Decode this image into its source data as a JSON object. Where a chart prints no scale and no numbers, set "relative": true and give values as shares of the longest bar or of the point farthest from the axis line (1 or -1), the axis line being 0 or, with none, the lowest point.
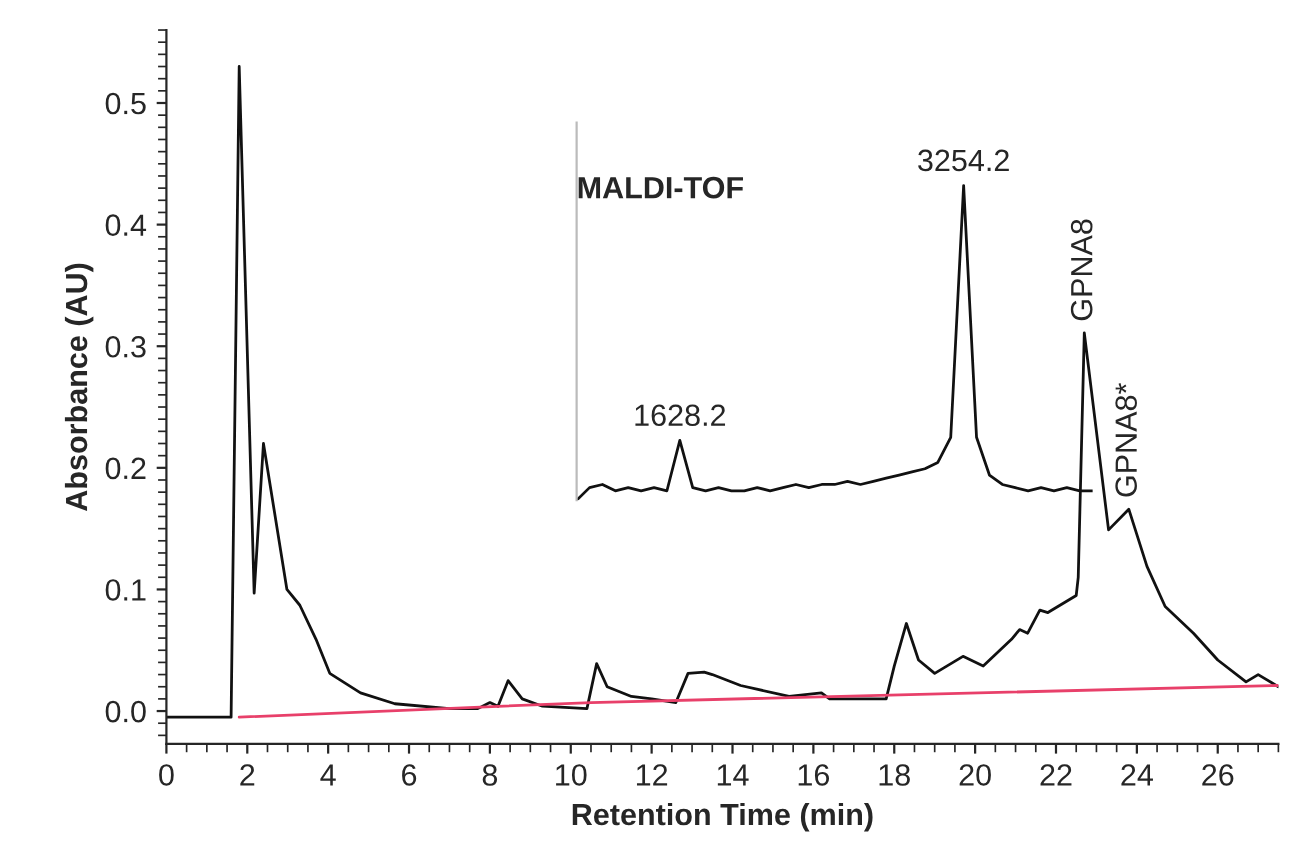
{
  "chart_data": [
    {
      "type": "line",
      "xlabel": "Retention Time (min)",
      "ylabel": "Absorbance (AU)",
      "xlim": [
        0,
        27.5
      ],
      "ylim": [
        -0.027,
        0.56
      ],
      "xticks": [
        0,
        2,
        4,
        6,
        8,
        10,
        12,
        14,
        16,
        18,
        20,
        22,
        24,
        26
      ],
      "yticks": [
        {
          "value": 0,
          "label": "0.0"
        },
        {
          "value": 0.1,
          "label": "0.1"
        },
        {
          "value": 0.2,
          "label": "0.2"
        },
        {
          "value": 0.3,
          "label": "0.3"
        },
        {
          "value": 0.4,
          "label": "0.4"
        },
        {
          "value": 0.5,
          "label": "0.5"
        }
      ],
      "grid": false,
      "legend": false,
      "marker": "none",
      "line_style": "solid",
      "series": [
        {
          "color": "#111111",
          "x": [
            0,
            1.6,
            1.8,
            2.17,
            2.4,
            2.98,
            3.3,
            3.7,
            4.04,
            4.8,
            5.65,
            7.0,
            7.7,
            8.0,
            8.2,
            8.45,
            8.8,
            9.3,
            10.4,
            10.64,
            10.9,
            11.5,
            12.0,
            12.6,
            12.9,
            13.3,
            13.5,
            14.2,
            15.4,
            16.2,
            16.4,
            17.8,
            18.0,
            18.3,
            18.6,
            19.0,
            19.7,
            20.2,
            20.9,
            21.1,
            21.3,
            21.6,
            21.8,
            22.5,
            22.55,
            22.7,
            23.3,
            23.8,
            24.25,
            24.7,
            25.4,
            26.0,
            26.7,
            27.0,
            27.5
          ],
          "values": [
            -0.005,
            -0.005,
            0.53,
            0.097,
            0.22,
            0.1,
            0.087,
            0.059,
            0.031,
            0.015,
            0.006,
            0.002,
            0.002,
            0.007,
            0.004,
            0.025,
            0.01,
            0.004,
            0.002,
            0.039,
            0.02,
            0.012,
            0.01,
            0.007,
            0.031,
            0.032,
            0.03,
            0.021,
            0.012,
            0.015,
            0.01,
            0.01,
            0.037,
            0.072,
            0.042,
            0.031,
            0.045,
            0.037,
            0.059,
            0.067,
            0.064,
            0.083,
            0.081,
            0.095,
            0.11,
            0.311,
            0.149,
            0.166,
            0.119,
            0.086,
            0.064,
            0.042,
            0.024,
            0.03,
            0.02
          ]
        },
        {
          "color": "#e8406a",
          "x": [
            1.8,
            10.5,
            27.5
          ],
          "values": [
            -0.005,
            0.007,
            0.021
          ]
        }
      ],
      "annotations": [
        {
          "text": "GPNA8",
          "x": 22.7,
          "y": 0.311
        },
        {
          "text": "GPNA8*",
          "x": 23.8,
          "y": 0.166
        }
      ]
    },
    {
      "type": "line",
      "title": "MALDI-TOF",
      "relative": true,
      "categories": [
        null,
        null,
        null,
        null,
        null,
        null,
        null,
        null,
        "1628.2",
        null,
        null,
        null,
        null,
        null,
        null,
        null,
        null,
        null,
        null,
        null,
        null,
        null,
        null,
        null,
        null,
        null,
        null,
        null,
        null,
        null,
        "3254.2",
        null,
        null,
        null,
        null,
        null,
        null,
        null,
        null,
        null,
        null
      ],
      "series": [
        {
          "color": "#111111",
          "values": [
            0.0,
            0.04,
            0.05,
            0.03,
            0.04,
            0.03,
            0.04,
            0.03,
            0.19,
            0.04,
            0.03,
            0.04,
            0.03,
            0.03,
            0.04,
            0.03,
            0.04,
            0.05,
            0.04,
            0.05,
            0.05,
            0.06,
            0.05,
            0.06,
            0.07,
            0.08,
            0.09,
            0.1,
            0.12,
            0.2,
            1.0,
            0.2,
            0.08,
            0.05,
            0.04,
            0.03,
            0.04,
            0.03,
            0.04,
            0.03,
            0.03
          ]
        }
      ]
    }
  ]
}
